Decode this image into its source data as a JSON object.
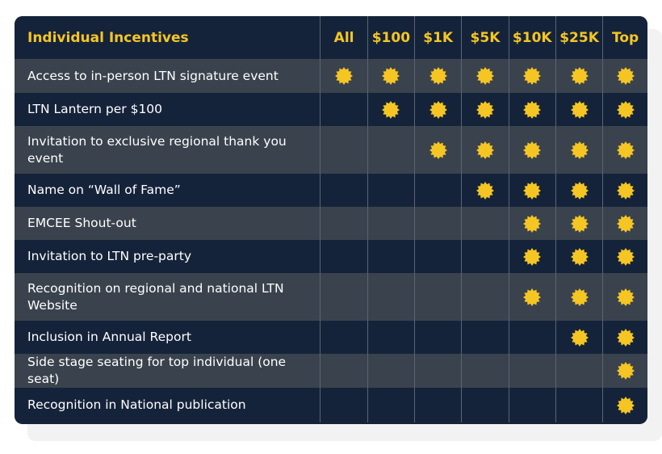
{
  "header": {
    "title": "Individual Incentives",
    "tiers": [
      "All",
      "$100",
      "$1K",
      "$5K",
      "$10K",
      "$25K",
      "Top"
    ]
  },
  "rows": [
    {
      "label": "Access to in-person LTN signature event",
      "marks": [
        true,
        true,
        true,
        true,
        true,
        true,
        true
      ]
    },
    {
      "label": "LTN Lantern per $100",
      "marks": [
        false,
        true,
        true,
        true,
        true,
        true,
        true
      ]
    },
    {
      "label": "Invitation to exclusive regional thank you event",
      "marks": [
        false,
        false,
        true,
        true,
        true,
        true,
        true
      ]
    },
    {
      "label": "Name on “Wall of Fame”",
      "marks": [
        false,
        false,
        false,
        true,
        true,
        true,
        true
      ]
    },
    {
      "label": "EMCEE Shout-out",
      "marks": [
        false,
        false,
        false,
        false,
        true,
        true,
        true
      ]
    },
    {
      "label": "Invitation to LTN pre-party",
      "marks": [
        false,
        false,
        false,
        false,
        true,
        true,
        true
      ]
    },
    {
      "label": "Recognition on regional and national LTN Website",
      "marks": [
        false,
        false,
        false,
        false,
        true,
        true,
        true
      ]
    },
    {
      "label": "Inclusion in Annual Report",
      "marks": [
        false,
        false,
        false,
        false,
        false,
        true,
        true
      ]
    },
    {
      "label": "Side stage seating for top individual (one seat)",
      "marks": [
        false,
        false,
        false,
        false,
        false,
        false,
        true
      ]
    },
    {
      "label": "Recognition in National publication",
      "marks": [
        false,
        false,
        false,
        false,
        false,
        false,
        true
      ]
    }
  ],
  "colors": {
    "accent": "#f5c623",
    "dark_row": "#15233a",
    "light_row": "#3a434d"
  },
  "icon": "starburst-icon"
}
